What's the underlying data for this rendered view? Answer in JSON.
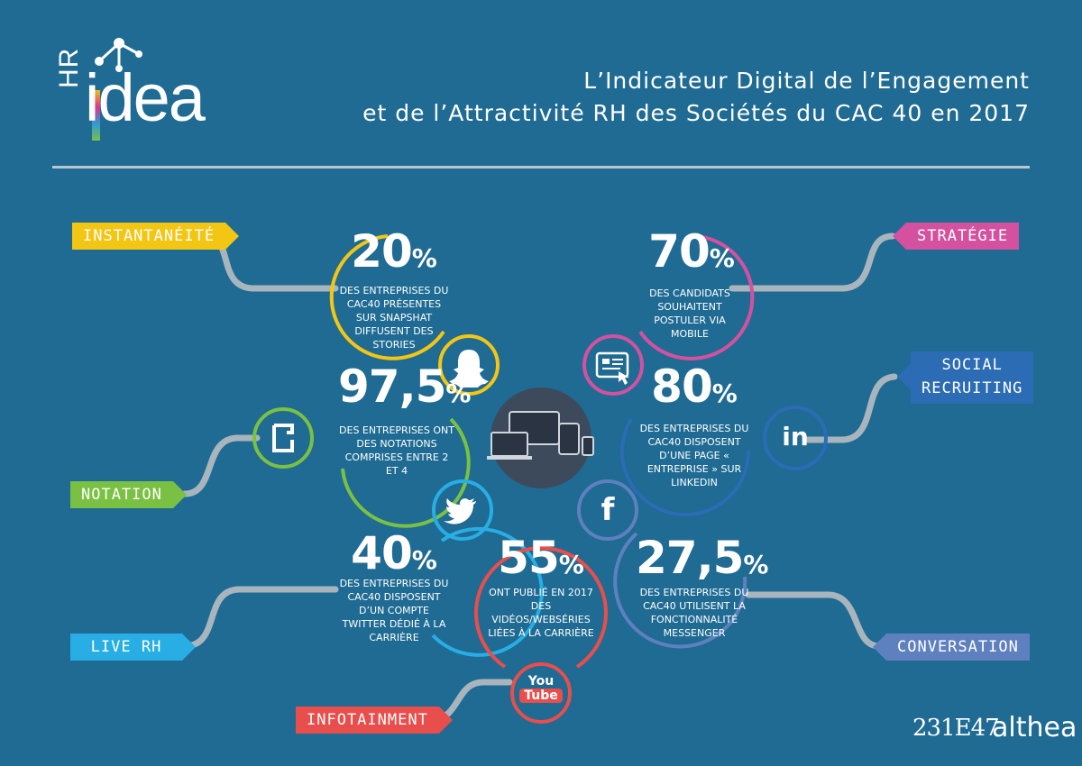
{
  "logo": {
    "hr": "HR",
    "idea": "idea"
  },
  "title": {
    "line1": "L’Indicateur Digital de l’Engagement",
    "line2": "et de l’Attractivité RH des Sociétés du CAC 40 en 2017"
  },
  "tags": {
    "instantaneite": "INSTANTANÉITÉ",
    "strategie": "STRATÉGIE",
    "social1": "SOCIAL",
    "social2": "RECRUITING",
    "notation": "NOTATION",
    "live": "LIVE RH",
    "conversation": "CONVERSATION",
    "infotainment": "INFOTAINMENT"
  },
  "stats": {
    "snapchat": {
      "value": "20",
      "unit": "%",
      "text": "DES ENTREPRISES DU CAC40 PRÉSENTES SUR SNAPSHAT DIFFUSENT DES STORIES"
    },
    "mobile": {
      "value": "70",
      "unit": "%",
      "text": "DES CANDIDATS SOUHAITENT POSTULER VIA MOBILE"
    },
    "notation": {
      "value": "97,5",
      "unit": "%",
      "text": "DES ENTREPRISES ONT DES NOTATIONS COMPRISES ENTRE 2 ET 4"
    },
    "linkedin": {
      "value": "80",
      "unit": "%",
      "text": "DES ENTREPRISES DU CAC40 DISPOSENT D’UNE PAGE « ENTREPRISE » SUR LINKEDIN"
    },
    "twitter": {
      "value": "40",
      "unit": "%",
      "text": "DES ENTREPRISES DU CAC40 DISPOSENT D’UN COMPTE TWITTER DÉDIÉ À LA CARRIÈRE"
    },
    "youtube": {
      "value": "55",
      "unit": "%",
      "text": "ONT PUBLIÉ EN 2017 DES VIDÉOS/WEBSÉRIES LIÉES À LA CARRIÈRE"
    },
    "messenger": {
      "value": "27,5",
      "unit": "%",
      "text": "DES ENTREPRISES DU CAC40 UTILISENT LA FONCTIONNALITÉ MESSENGER"
    }
  },
  "icons": {
    "linkedin": "in",
    "facebook": "f",
    "youtube_top": "You",
    "youtube_bottom": "Tube"
  },
  "colors": {
    "background": "#1f6b93",
    "yellow": "#f4c614",
    "pink": "#d4519f",
    "green": "#7ac143",
    "blue": "#2b6cb5",
    "cyan": "#28aee4",
    "red": "#e84e4b",
    "slate": "#5e80bf",
    "connector": "#a9b5bd",
    "hub": "#3d4a5c"
  },
  "footer": {
    "brand1": "231E47",
    "brand2": "althea"
  }
}
